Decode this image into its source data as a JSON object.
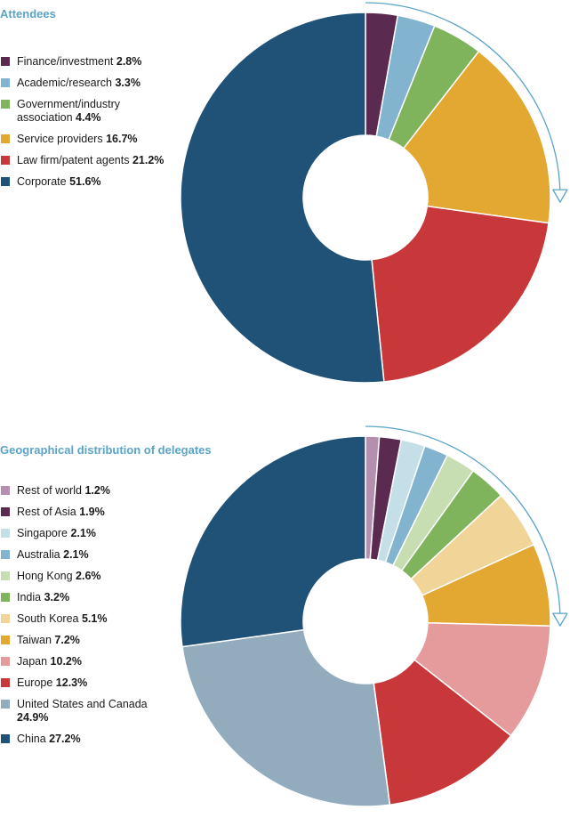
{
  "chart_data": [
    {
      "type": "pie",
      "title": "Attendees",
      "categories": [
        "Finance/investment",
        "Academic/research",
        "Government/industry association",
        "Service providers",
        "Law firm/patent agents",
        "Corporate"
      ],
      "values": [
        2.8,
        3.3,
        4.4,
        16.7,
        21.2,
        51.6
      ],
      "labels": [
        "2.8%",
        "3.3%",
        "4.4%",
        "16.7%",
        "21.2%",
        "51.6%"
      ],
      "colors": [
        "#5a2a50",
        "#82b4cf",
        "#7fb35c",
        "#e3a832",
        "#c8373a",
        "#1f5276"
      ],
      "legend": "left",
      "direction": "clockwise"
    },
    {
      "type": "pie",
      "title": "Geographical distribution of delegates",
      "categories": [
        "Rest of world",
        "Rest of Asia",
        "Singapore",
        "Australia",
        "Hong Kong",
        "India",
        "South Korea",
        "Taiwan",
        "Japan",
        "Europe",
        "United States and Canada",
        "China"
      ],
      "values": [
        1.2,
        1.9,
        2.1,
        2.1,
        2.6,
        3.2,
        5.1,
        7.2,
        10.2,
        12.3,
        24.9,
        27.2
      ],
      "labels": [
        "1.2%",
        "1.9%",
        "2.1%",
        "2.1%",
        "2.6%",
        "3.2%",
        "5.1%",
        "7.2%",
        "10.2%",
        "12.3%",
        "24.9%",
        "27.2%"
      ],
      "colors": [
        "#b58fb0",
        "#5a2a50",
        "#c5dfe9",
        "#82b4cf",
        "#c6deb1",
        "#7fb35c",
        "#f1d497",
        "#e3a832",
        "#e59a9b",
        "#c8373a",
        "#92acbd",
        "#1f5276"
      ],
      "legend": "left",
      "direction": "clockwise"
    }
  ]
}
